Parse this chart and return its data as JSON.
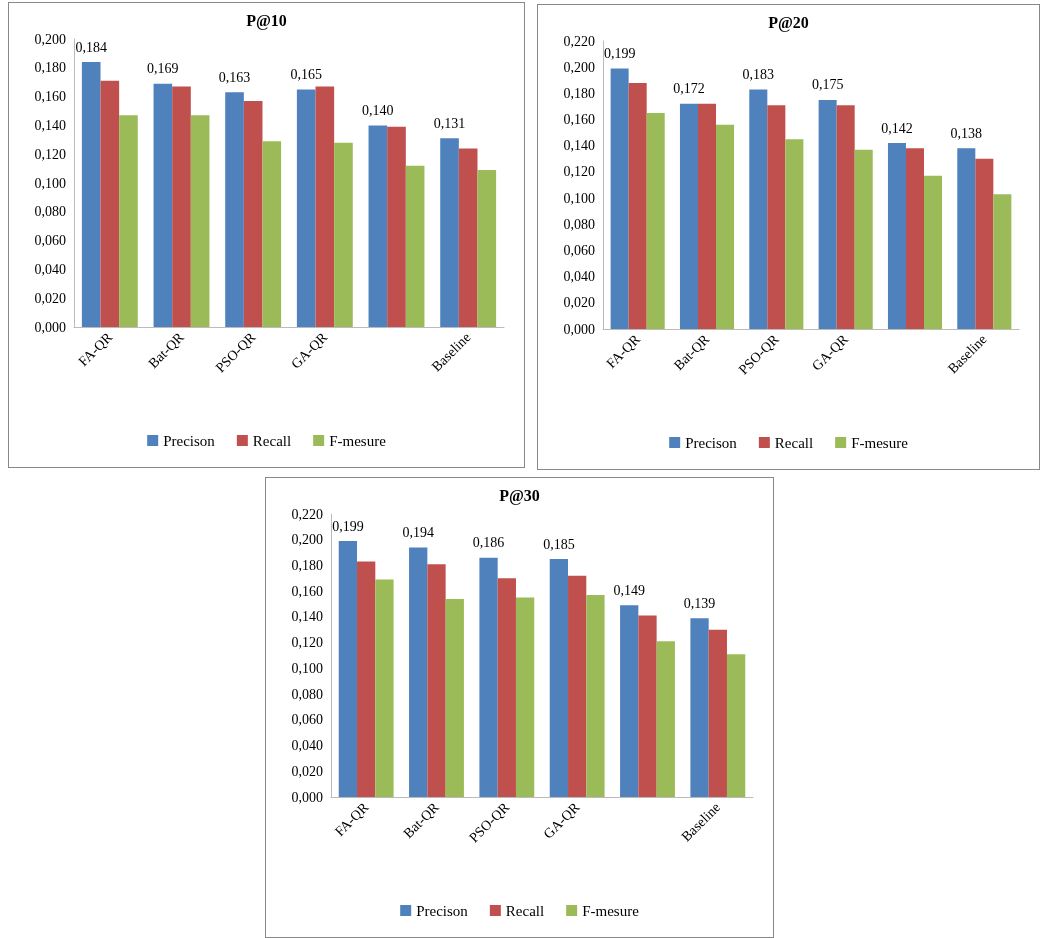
{
  "chart_data": [
    {
      "type": "bar",
      "title": "P@10",
      "categories": [
        "FA-QR",
        "Bat-QR",
        "PSO-QR",
        "GA-QR",
        null,
        "Baseline"
      ],
      "ylim": [
        0,
        0.2
      ],
      "yticks": [
        {
          "value": 0,
          "label": "0,000"
        },
        {
          "value": 0.02,
          "label": "0,020"
        },
        {
          "value": 0.04,
          "label": "0,040"
        },
        {
          "value": 0.06,
          "label": "0,060"
        },
        {
          "value": 0.08,
          "label": "0,080"
        },
        {
          "value": 0.1,
          "label": "0,100"
        },
        {
          "value": 0.12,
          "label": "0,120"
        },
        {
          "value": 0.14,
          "label": "0,140"
        },
        {
          "value": 0.16,
          "label": "0,160"
        },
        {
          "value": 0.18,
          "label": "0,180"
        },
        {
          "value": 0.2,
          "label": "0,200"
        }
      ],
      "grid": false,
      "legend": "bottom",
      "series": [
        {
          "name": "Precison",
          "color": "#4f81bd",
          "values": [
            0.184,
            0.169,
            0.163,
            0.165,
            0.14,
            0.131
          ],
          "value_labels": [
            "0,184",
            "0,169",
            "0,163",
            "0,165",
            "0,140",
            "0,131"
          ]
        },
        {
          "name": "Recall",
          "color": "#c0504d",
          "values": [
            0.171,
            0.167,
            0.157,
            0.167,
            0.139,
            0.124
          ]
        },
        {
          "name": "F-mesure",
          "color": "#9bbb59",
          "values": [
            0.147,
            0.147,
            0.129,
            0.128,
            0.112,
            0.109
          ]
        }
      ]
    },
    {
      "type": "bar",
      "title": "P@20",
      "categories": [
        "FA-QR",
        "Bat-QR",
        "PSO-QR",
        "GA-QR",
        null,
        "Baseline"
      ],
      "ylim": [
        0,
        0.22
      ],
      "yticks": [
        {
          "value": 0,
          "label": "0,000"
        },
        {
          "value": 0.02,
          "label": "0,020"
        },
        {
          "value": 0.04,
          "label": "0,040"
        },
        {
          "value": 0.06,
          "label": "0,060"
        },
        {
          "value": 0.08,
          "label": "0,080"
        },
        {
          "value": 0.1,
          "label": "0,100"
        },
        {
          "value": 0.12,
          "label": "0,120"
        },
        {
          "value": 0.14,
          "label": "0,140"
        },
        {
          "value": 0.16,
          "label": "0,160"
        },
        {
          "value": 0.18,
          "label": "0,180"
        },
        {
          "value": 0.2,
          "label": "0,200"
        },
        {
          "value": 0.22,
          "label": "0,220"
        }
      ],
      "grid": false,
      "legend": "bottom",
      "series": [
        {
          "name": "Precison",
          "color": "#4f81bd",
          "values": [
            0.199,
            0.172,
            0.183,
            0.175,
            0.142,
            0.138
          ],
          "value_labels": [
            "0,199",
            "0,172",
            "0,183",
            "0,175",
            "0,142",
            "0,138"
          ]
        },
        {
          "name": "Recall",
          "color": "#c0504d",
          "values": [
            0.188,
            0.172,
            0.171,
            0.171,
            0.138,
            0.13
          ]
        },
        {
          "name": "F-mesure",
          "color": "#9bbb59",
          "values": [
            0.165,
            0.156,
            0.145,
            0.137,
            0.117,
            0.103
          ]
        }
      ]
    },
    {
      "type": "bar",
      "title": "P@30",
      "categories": [
        "FA-QR",
        "Bat-QR",
        "PSO-QR",
        "GA-QR",
        null,
        "Baseline"
      ],
      "ylim": [
        0,
        0.22
      ],
      "yticks": [
        {
          "value": 0,
          "label": "0,000"
        },
        {
          "value": 0.02,
          "label": "0,020"
        },
        {
          "value": 0.04,
          "label": "0,040"
        },
        {
          "value": 0.06,
          "label": "0,060"
        },
        {
          "value": 0.08,
          "label": "0,080"
        },
        {
          "value": 0.1,
          "label": "0,100"
        },
        {
          "value": 0.12,
          "label": "0,120"
        },
        {
          "value": 0.14,
          "label": "0,140"
        },
        {
          "value": 0.16,
          "label": "0,160"
        },
        {
          "value": 0.18,
          "label": "0,180"
        },
        {
          "value": 0.2,
          "label": "0,200"
        },
        {
          "value": 0.22,
          "label": "0,220"
        }
      ],
      "grid": false,
      "legend": "bottom",
      "series": [
        {
          "name": "Precison",
          "color": "#4f81bd",
          "values": [
            0.199,
            0.194,
            0.186,
            0.185,
            0.149,
            0.139
          ],
          "value_labels": [
            "0,199",
            "0,194",
            "0,186",
            "0,185",
            "0,149",
            "0,139"
          ]
        },
        {
          "name": "Recall",
          "color": "#c0504d",
          "values": [
            0.183,
            0.181,
            0.17,
            0.172,
            0.141,
            0.13
          ]
        },
        {
          "name": "F-mesure",
          "color": "#9bbb59",
          "values": [
            0.169,
            0.154,
            0.155,
            0.157,
            0.121,
            0.111
          ]
        }
      ]
    }
  ]
}
